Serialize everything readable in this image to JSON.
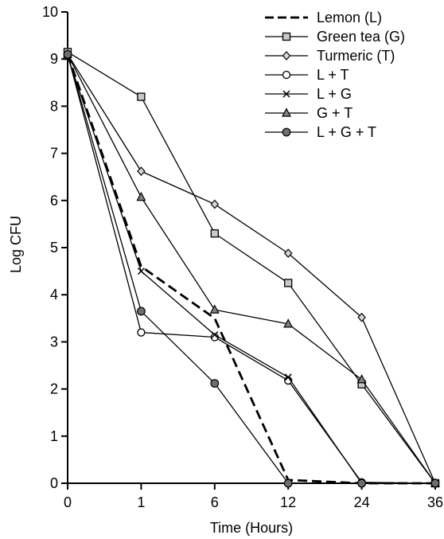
{
  "chart_data": {
    "type": "line",
    "title": "",
    "xlabel": "Time (Hours)",
    "ylabel": "Log CFU",
    "categories": [
      "0",
      "1",
      "6",
      "12",
      "24",
      "36"
    ],
    "ylim": [
      0,
      10
    ],
    "yticks": [
      "0",
      "1",
      "2",
      "3",
      "4",
      "5",
      "6",
      "7",
      "8",
      "9",
      "10"
    ],
    "grid": false,
    "legend_position": "top-right",
    "series": [
      {
        "name": "Lemon (L)",
        "values": [
          9.1,
          4.6,
          3.5,
          0.07,
          0.0,
          0.0
        ],
        "marker": "none",
        "style": "dashed",
        "color": "#000000"
      },
      {
        "name": "Green tea (G)",
        "values": [
          9.15,
          8.2,
          5.3,
          4.25,
          2.1,
          0.0
        ],
        "marker": "square",
        "style": "solid",
        "color": "#000000"
      },
      {
        "name": "Turmeric (T)",
        "values": [
          9.1,
          6.62,
          5.92,
          4.88,
          3.52,
          0.0
        ],
        "marker": "diamond",
        "style": "solid",
        "color": "#000000"
      },
      {
        "name": "L + T",
        "values": [
          9.1,
          3.2,
          3.1,
          2.18,
          0.02,
          0.0
        ],
        "marker": "circle-open",
        "style": "solid",
        "color": "#000000"
      },
      {
        "name": "L + G",
        "values": [
          9.05,
          4.5,
          3.15,
          2.25,
          0.0,
          0.0
        ],
        "marker": "x",
        "style": "solid",
        "color": "#000000"
      },
      {
        "name": "G + T",
        "values": [
          9.1,
          6.07,
          3.68,
          3.38,
          2.2,
          0.0
        ],
        "marker": "triangle",
        "style": "solid",
        "color": "#000000"
      },
      {
        "name": "L + G + T",
        "values": [
          9.1,
          3.65,
          2.12,
          0.0,
          0.0,
          0.0
        ],
        "marker": "circle-filled",
        "style": "solid",
        "color": "#000000"
      }
    ]
  }
}
